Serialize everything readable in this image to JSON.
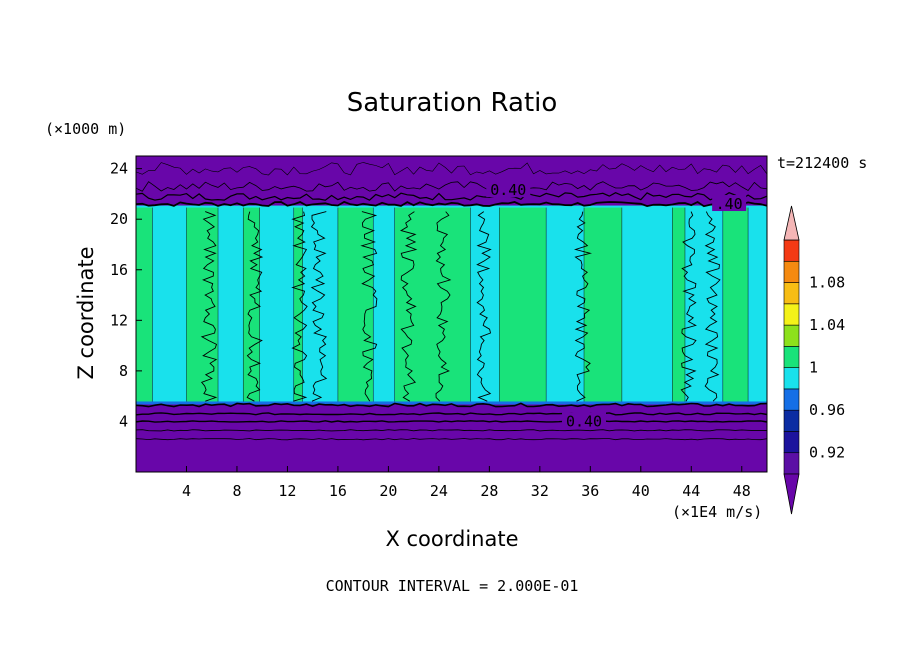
{
  "chart_data": {
    "type": "heatmap",
    "title": "Saturation Ratio",
    "xlabel": "X coordinate",
    "ylabel": "Z coordinate",
    "x_unit": "(×1E4 m/s)",
    "z_unit": "(×1000 m)",
    "time_label": "t=212400 s",
    "footer": "CONTOUR INTERVAL = 2.000E-01",
    "xlim": [
      0,
      50
    ],
    "ylim": [
      0,
      25
    ],
    "xticks": [
      4,
      8,
      12,
      16,
      20,
      24,
      28,
      32,
      36,
      40,
      44,
      48
    ],
    "yticks": [
      4,
      8,
      12,
      16,
      20,
      24
    ],
    "contour_labels": [
      {
        "text": "0.40",
        "x": 29.5,
        "z": 22.3
      },
      {
        "text": "0.40",
        "x": 35.5,
        "z": 4.0
      },
      {
        "text": ".40",
        "x": 47.0,
        "z": 21.2
      }
    ],
    "colorbar": {
      "levels": [
        0.92,
        0.94,
        0.96,
        0.98,
        1,
        1.02,
        1.04,
        1.06,
        1.08,
        1.1
      ],
      "labels": [
        "0.92",
        "0.96",
        "1",
        "1.04",
        "1.08"
      ],
      "colors": [
        "#5b0fa5",
        "#1c139d",
        "#0b2ca2",
        "#156fe6",
        "#19e1ec",
        "#19e37a",
        "#8de11c",
        "#f4f219",
        "#f7bd14",
        "#f58a10",
        "#f43a14",
        "#f2cbc7"
      ],
      "under_color": "#6806a9",
      "over_color": "#f4b6b6"
    },
    "regions": {
      "upper_dry_layer": {
        "z_range": [
          21,
          25
        ],
        "value": "<0.92"
      },
      "lower_dry_layer": {
        "z_range": [
          0,
          5.5
        ],
        "value": "<0.92"
      },
      "cloud_layer": {
        "z_range": [
          5.5,
          21
        ]
      },
      "bands": [
        {
          "x": [
            0,
            1.3
          ],
          "v": "1"
        },
        {
          "x": [
            1.3,
            4.0
          ],
          "v": "0.98"
        },
        {
          "x": [
            4.0,
            6.5
          ],
          "v": "1"
        },
        {
          "x": [
            6.5,
            8.5
          ],
          "v": "0.98"
        },
        {
          "x": [
            8.5,
            9.8
          ],
          "v": "1"
        },
        {
          "x": [
            9.8,
            12.5
          ],
          "v": "0.98"
        },
        {
          "x": [
            12.5,
            13.2
          ],
          "v": "1"
        },
        {
          "x": [
            13.2,
            16.0
          ],
          "v": "0.98"
        },
        {
          "x": [
            16.0,
            18.8
          ],
          "v": "1"
        },
        {
          "x": [
            18.8,
            20.5
          ],
          "v": "0.98"
        },
        {
          "x": [
            20.5,
            26.5
          ],
          "v": "1"
        },
        {
          "x": [
            26.5,
            28.8
          ],
          "v": "0.98"
        },
        {
          "x": [
            28.8,
            32.5
          ],
          "v": "1"
        },
        {
          "x": [
            32.5,
            35.5
          ],
          "v": "0.98"
        },
        {
          "x": [
            35.5,
            38.5
          ],
          "v": "1"
        },
        {
          "x": [
            38.5,
            42.5
          ],
          "v": "0.98"
        },
        {
          "x": [
            42.5,
            43.5
          ],
          "v": "1"
        },
        {
          "x": [
            43.5,
            46.5
          ],
          "v": "0.98"
        },
        {
          "x": [
            46.5,
            48.5
          ],
          "v": "1"
        },
        {
          "x": [
            48.5,
            50
          ],
          "v": "0.98"
        }
      ]
    }
  }
}
